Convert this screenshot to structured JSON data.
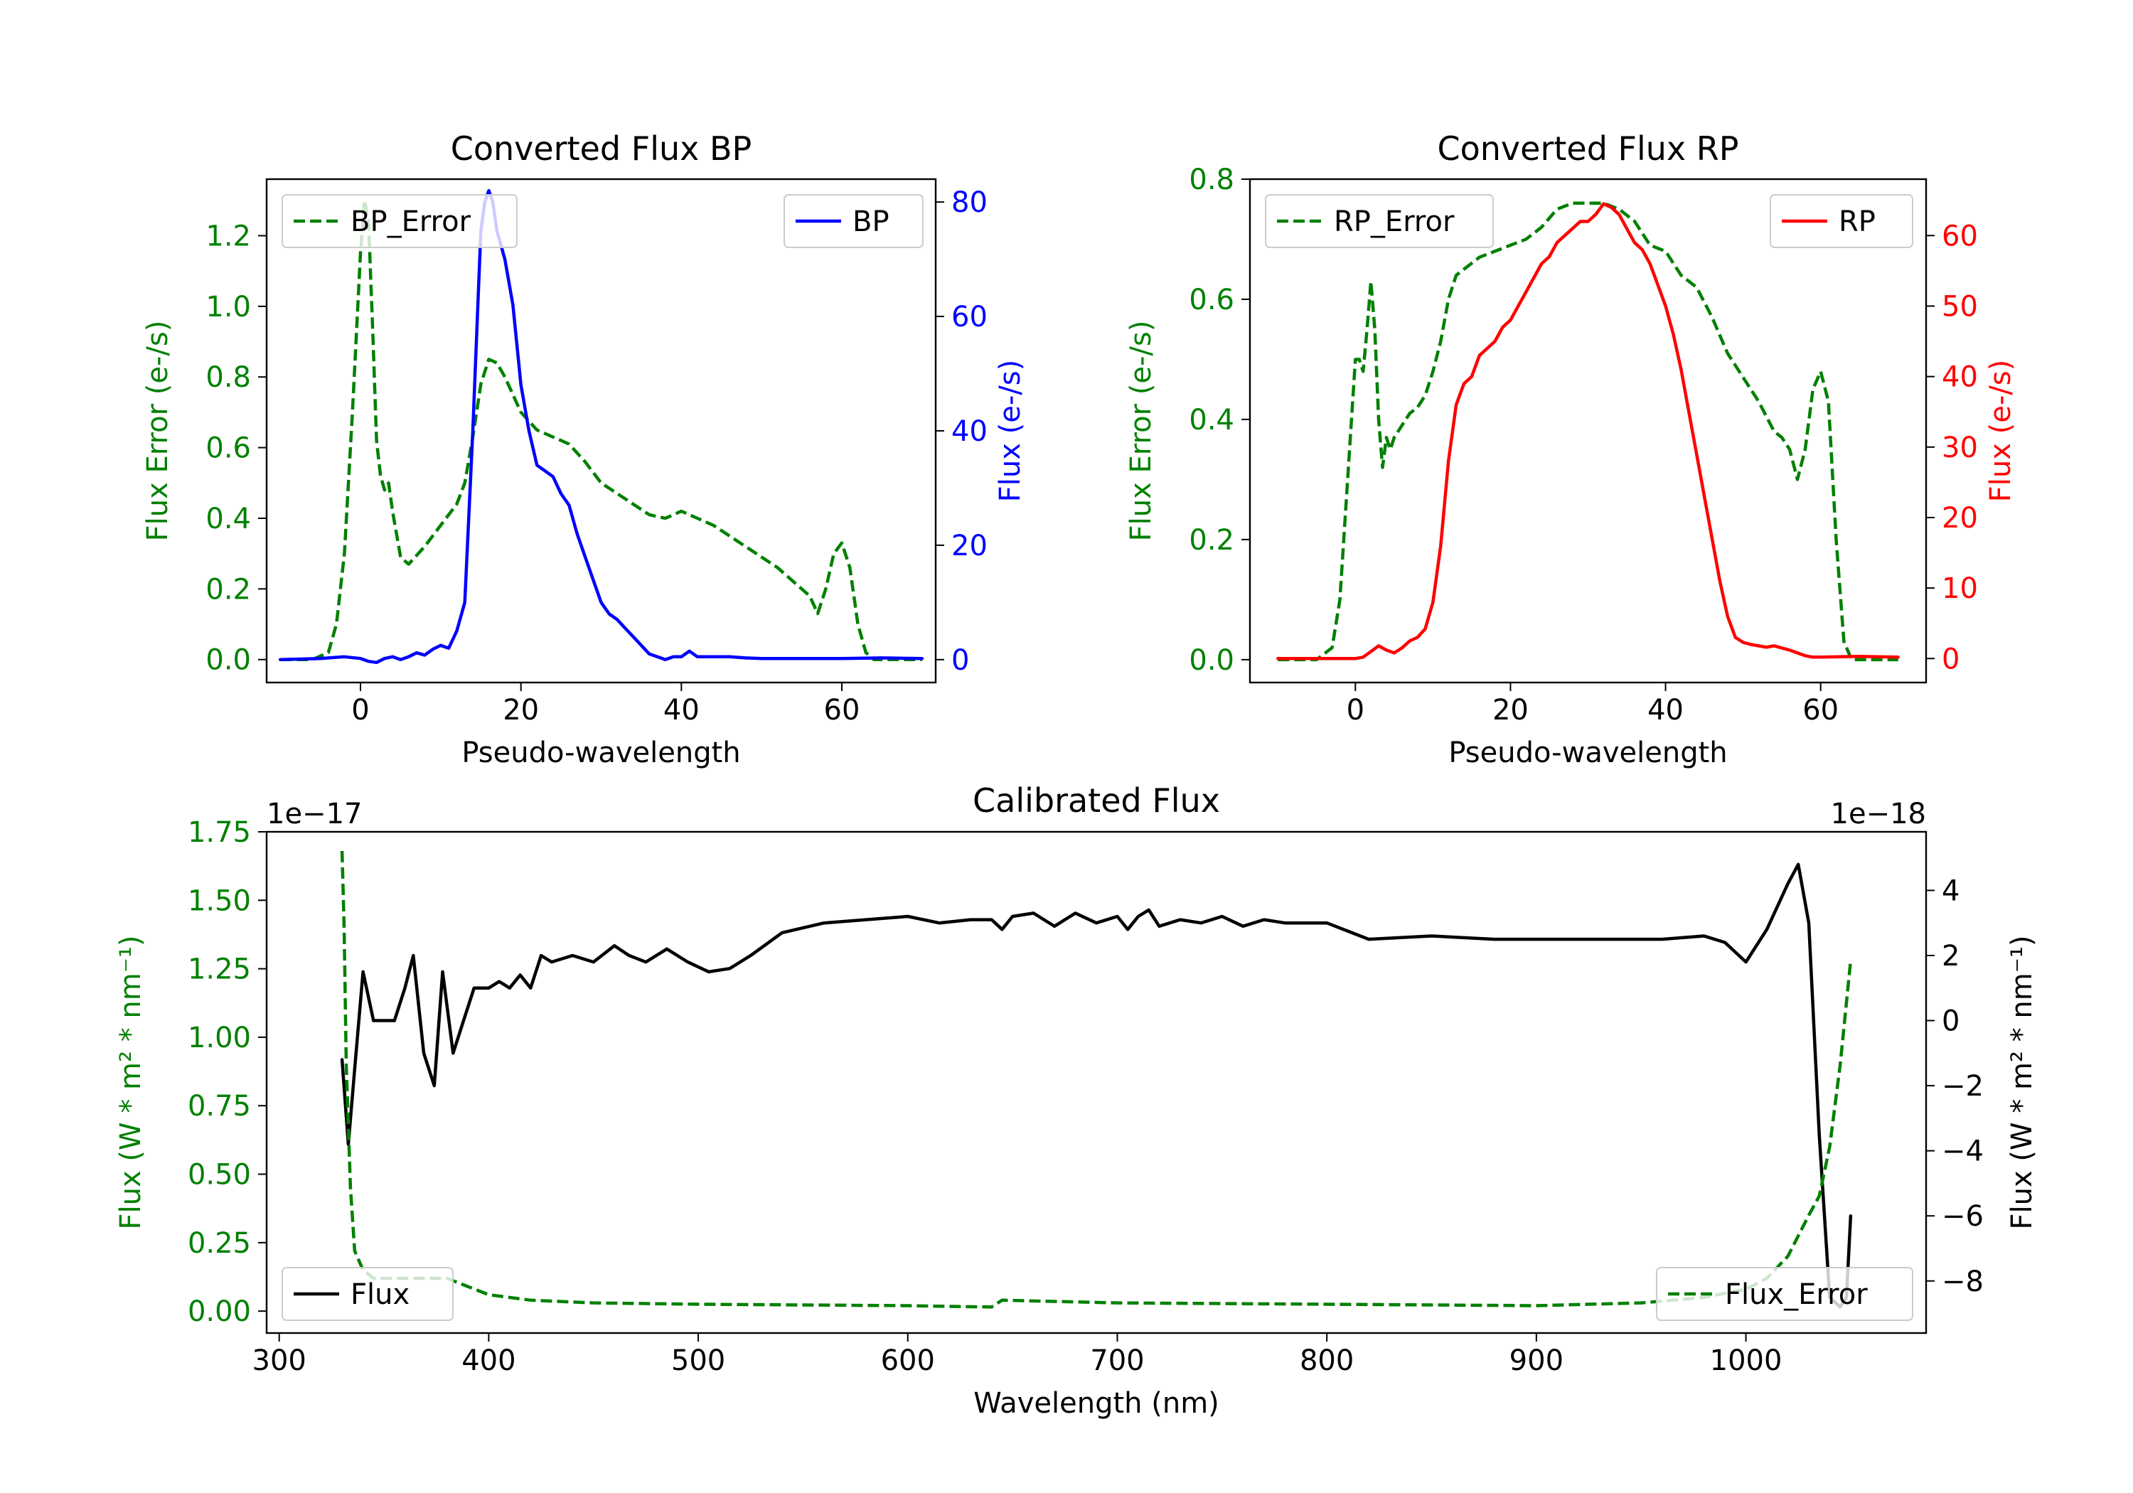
{
  "chart_data": [
    {
      "id": "bp",
      "type": "line",
      "title": "Converted Flux BP",
      "xlabel": "Pseudo-wavelength",
      "ylabel_left": "Flux Error (e-/s)",
      "ylabel_right": "Flux (e-/s)",
      "xlim": [
        -11.7,
        71.7
      ],
      "ylim_left": [
        -0.065,
        1.36
      ],
      "ylim_right": [
        -4,
        84
      ],
      "xticks": [
        0,
        20,
        40,
        60
      ],
      "yticks_left": [
        0.0,
        0.2,
        0.4,
        0.6,
        0.8,
        1.0,
        1.2
      ],
      "ytick_labels_left": [
        "0.0",
        "0.2",
        "0.4",
        "0.6",
        "0.8",
        "1.0",
        "1.2"
      ],
      "yticks_right": [
        0,
        20,
        40,
        60,
        80
      ],
      "ytick_labels_right": [
        "0",
        "20",
        "40",
        "60",
        "80"
      ],
      "colors": {
        "left": "#008000",
        "right": "#0000ff"
      },
      "series": [
        {
          "name": "BP_Error",
          "axis": "left",
          "style": "dashed",
          "color": "#008000",
          "x": [
            -10,
            -6,
            -4,
            -3,
            -2,
            -1,
            0,
            0.5,
            1,
            1.5,
            2,
            2.5,
            3,
            3.5,
            4,
            5,
            6,
            8,
            10,
            12,
            13,
            14,
            15,
            16,
            17,
            18,
            20,
            22,
            24,
            26,
            28,
            30,
            32,
            34,
            36,
            38,
            40,
            42,
            44,
            46,
            48,
            50,
            52,
            54,
            56,
            57,
            58,
            59,
            60,
            61,
            62,
            63,
            64,
            70
          ],
          "y": [
            0.0,
            0.0,
            0.02,
            0.1,
            0.3,
            0.7,
            1.15,
            1.3,
            1.24,
            0.95,
            0.62,
            0.52,
            0.48,
            0.5,
            0.42,
            0.29,
            0.27,
            0.32,
            0.38,
            0.44,
            0.5,
            0.63,
            0.78,
            0.85,
            0.84,
            0.8,
            0.7,
            0.65,
            0.63,
            0.61,
            0.56,
            0.5,
            0.47,
            0.44,
            0.41,
            0.4,
            0.42,
            0.4,
            0.38,
            0.35,
            0.32,
            0.29,
            0.26,
            0.22,
            0.18,
            0.13,
            0.2,
            0.3,
            0.33,
            0.26,
            0.1,
            0.02,
            0.0,
            0.0
          ]
        },
        {
          "name": "BP",
          "axis": "right",
          "style": "solid",
          "color": "#0000ff",
          "x": [
            -10,
            -5,
            -2,
            0,
            1,
            2,
            3,
            4,
            5,
            6,
            7,
            8,
            9,
            10,
            11,
            12,
            13,
            14,
            15,
            15.5,
            16,
            16.5,
            17,
            18,
            19,
            20,
            21,
            22,
            23,
            24,
            25,
            26,
            27,
            28,
            29,
            30,
            31,
            32,
            33,
            34,
            35,
            36,
            37,
            38,
            39,
            40,
            41,
            42,
            44,
            46,
            48,
            50,
            55,
            60,
            65,
            70
          ],
          "y": [
            0,
            0.2,
            0.5,
            0.2,
            -0.3,
            -0.5,
            0.2,
            0.5,
            0,
            0.5,
            1.2,
            0.8,
            1.8,
            2.5,
            2,
            5,
            10,
            40,
            75,
            80,
            82,
            80,
            75,
            70,
            62,
            48,
            40,
            34,
            33,
            32,
            29,
            27,
            22,
            18,
            14,
            10,
            8,
            7,
            5.5,
            4,
            2.5,
            1,
            0.5,
            0,
            0.5,
            0.5,
            1.5,
            0.5,
            0.5,
            0.5,
            0.3,
            0.2,
            0.2,
            0.2,
            0.3,
            0.2
          ]
        }
      ],
      "legend_left": {
        "label": "BP_Error",
        "position": "upper left"
      },
      "legend_right": {
        "label": "BP",
        "position": "upper right"
      }
    },
    {
      "id": "rp",
      "type": "line",
      "title": "Converted Flux RP",
      "xlabel": "Pseudo-wavelength",
      "ylabel_left": "Flux Error (e-/s)",
      "ylabel_right": "Flux (e-/s)",
      "xlim": [
        -13.6,
        73.6
      ],
      "ylim_left": [
        -0.038,
        0.8
      ],
      "ylim_right": [
        -3.4,
        68
      ],
      "xticks": [
        0,
        20,
        40,
        60
      ],
      "yticks_left": [
        0.0,
        0.2,
        0.4,
        0.6,
        0.8
      ],
      "ytick_labels_left": [
        "0.0",
        "0.2",
        "0.4",
        "0.6",
        "0.8"
      ],
      "yticks_right": [
        0,
        10,
        20,
        30,
        40,
        50,
        60
      ],
      "ytick_labels_right": [
        "0",
        "10",
        "20",
        "30",
        "40",
        "50",
        "60"
      ],
      "colors": {
        "left": "#008000",
        "right": "#ff0000"
      },
      "series": [
        {
          "name": "RP_Error",
          "axis": "left",
          "style": "dashed",
          "color": "#008000",
          "x": [
            -10,
            -5,
            -3,
            -2,
            -1,
            0,
            0.5,
            1,
            1.5,
            2,
            2.5,
            3,
            3.5,
            4,
            4.5,
            5,
            6,
            7,
            8,
            9,
            10,
            11,
            12,
            13,
            14,
            16,
            18,
            20,
            22,
            24,
            26,
            28,
            30,
            32,
            34,
            36,
            38,
            40,
            42,
            44,
            46,
            48,
            50,
            52,
            54,
            55,
            56,
            57,
            58,
            59,
            60,
            61,
            62,
            63,
            64,
            70
          ],
          "y": [
            0.0,
            0.0,
            0.02,
            0.1,
            0.3,
            0.5,
            0.5,
            0.48,
            0.55,
            0.63,
            0.55,
            0.4,
            0.32,
            0.37,
            0.35,
            0.37,
            0.39,
            0.41,
            0.42,
            0.44,
            0.48,
            0.53,
            0.6,
            0.64,
            0.65,
            0.67,
            0.68,
            0.69,
            0.7,
            0.72,
            0.75,
            0.76,
            0.76,
            0.76,
            0.75,
            0.73,
            0.69,
            0.68,
            0.64,
            0.62,
            0.57,
            0.51,
            0.47,
            0.43,
            0.38,
            0.37,
            0.35,
            0.3,
            0.35,
            0.45,
            0.48,
            0.43,
            0.2,
            0.03,
            0.0,
            0.0
          ]
        },
        {
          "name": "RP",
          "axis": "right",
          "style": "solid",
          "color": "#ff0000",
          "x": [
            -10,
            -5,
            -2,
            0,
            1,
            2,
            3,
            4,
            5,
            6,
            7,
            8,
            9,
            10,
            11,
            12,
            13,
            14,
            15,
            16,
            17,
            18,
            19,
            20,
            21,
            22,
            23,
            24,
            25,
            26,
            27,
            28,
            29,
            30,
            31,
            32,
            33,
            34,
            35,
            36,
            37,
            38,
            39,
            40,
            41,
            42,
            43,
            44,
            45,
            46,
            47,
            48,
            49,
            50,
            51,
            52,
            53,
            54,
            55,
            56,
            57,
            58,
            59,
            60,
            65,
            70
          ],
          "y": [
            0,
            0,
            0,
            0,
            0.2,
            1,
            1.8,
            1.2,
            0.8,
            1.5,
            2.5,
            3.0,
            4.2,
            8,
            16,
            28,
            36,
            39,
            40,
            43,
            44,
            45,
            47,
            48,
            50,
            52,
            54,
            56,
            57,
            59,
            60,
            61,
            62,
            62,
            63,
            64.5,
            64,
            63,
            61,
            59,
            58,
            56,
            53,
            50,
            46,
            41,
            35,
            29,
            23,
            17,
            11,
            6,
            3,
            2.3,
            2,
            1.8,
            1.6,
            1.8,
            1.5,
            1.2,
            0.8,
            0.4,
            0.2,
            0.2,
            0.3,
            0.2
          ]
        }
      ],
      "legend_left": {
        "label": "RP_Error",
        "position": "upper left"
      },
      "legend_right": {
        "label": "RP",
        "position": "upper right"
      }
    },
    {
      "id": "cal",
      "type": "line",
      "title": "Calibrated Flux",
      "xlabel": "Wavelength (nm)",
      "ylabel_left": "Flux (W * m² * nm⁻¹)",
      "ylabel_right": "Flux (W * m² * nm⁻¹)",
      "offset_left": "1e−17",
      "offset_right": "1e−18",
      "xlim": [
        294,
        1086
      ],
      "ylim_left": [
        -0.08,
        1.75
      ],
      "ylim_right": [
        -9.6,
        5.8
      ],
      "xticks": [
        300,
        400,
        500,
        600,
        700,
        800,
        900,
        1000
      ],
      "yticks_left": [
        0.0,
        0.25,
        0.5,
        0.75,
        1.0,
        1.25,
        1.5,
        1.75
      ],
      "ytick_labels_left": [
        "0.00",
        "0.25",
        "0.50",
        "0.75",
        "1.00",
        "1.25",
        "1.50",
        "1.75"
      ],
      "yticks_right": [
        -8,
        -6,
        -4,
        -2,
        0,
        2,
        4
      ],
      "ytick_labels_right": [
        "−8",
        "−6",
        "−4",
        "−2",
        "0",
        "2",
        "4"
      ],
      "colors": {
        "left": "#008000",
        "right": "#000000"
      },
      "series": [
        {
          "name": "Flux",
          "axis": "right",
          "style": "solid",
          "color": "#000000",
          "x": [
            330,
            333,
            336,
            340,
            345,
            350,
            355,
            360,
            364,
            369,
            374,
            378,
            383,
            388,
            393,
            400,
            405,
            410,
            415,
            420,
            425,
            430,
            440,
            450,
            460,
            467,
            475,
            485,
            495,
            505,
            515,
            525,
            540,
            560,
            580,
            600,
            615,
            630,
            640,
            645,
            650,
            660,
            665,
            670,
            680,
            690,
            700,
            705,
            710,
            715,
            720,
            730,
            740,
            750,
            760,
            770,
            780,
            800,
            820,
            850,
            880,
            900,
            920,
            940,
            960,
            980,
            990,
            1000,
            1010,
            1020,
            1025,
            1030,
            1035,
            1040,
            1045,
            1048,
            1050
          ],
          "y": [
            -1.2,
            -3.8,
            -1.5,
            1.5,
            0,
            0,
            0,
            1,
            2,
            -1,
            -2,
            1.5,
            -1,
            0,
            1,
            1,
            1.2,
            1,
            1.4,
            1,
            2.0,
            1.8,
            2.0,
            1.8,
            2.3,
            2.0,
            1.8,
            2.2,
            1.8,
            1.5,
            1.6,
            2.0,
            2.7,
            3.0,
            3.1,
            3.2,
            3.0,
            3.1,
            3.1,
            2.8,
            3.2,
            3.3,
            3.1,
            2.9,
            3.3,
            3.0,
            3.2,
            2.8,
            3.2,
            3.4,
            2.9,
            3.1,
            3.0,
            3.2,
            2.9,
            3.1,
            3.0,
            3.0,
            2.5,
            2.6,
            2.5,
            2.5,
            2.5,
            2.5,
            2.5,
            2.6,
            2.4,
            1.8,
            2.8,
            4.2,
            4.8,
            3.0,
            -3.5,
            -8.5,
            -8.8,
            -8.5,
            -6.0
          ]
        },
        {
          "name": "Flux_Error",
          "axis": "left",
          "style": "dashed",
          "color": "#008000",
          "x": [
            330,
            331,
            332,
            334,
            336,
            340,
            345,
            360,
            380,
            400,
            420,
            450,
            500,
            600,
            640,
            645,
            700,
            800,
            900,
            950,
            980,
            1000,
            1010,
            1020,
            1030,
            1035,
            1040,
            1045,
            1050
          ],
          "y": [
            1.68,
            1.4,
            0.9,
            0.45,
            0.22,
            0.15,
            0.12,
            0.12,
            0.12,
            0.06,
            0.04,
            0.03,
            0.025,
            0.02,
            0.015,
            0.04,
            0.03,
            0.025,
            0.02,
            0.03,
            0.05,
            0.08,
            0.12,
            0.2,
            0.35,
            0.42,
            0.6,
            0.9,
            1.28
          ]
        }
      ],
      "legend_left": {
        "label": "Flux",
        "position": "lower left"
      },
      "legend_right": {
        "label": "Flux_Error",
        "position": "lower right"
      }
    }
  ]
}
